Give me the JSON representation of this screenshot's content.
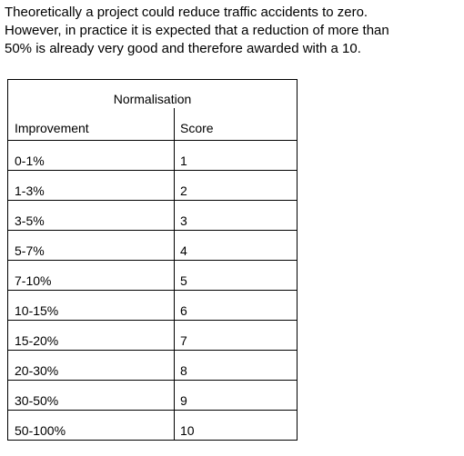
{
  "intro": {
    "lines": [
      "Theoretically a project could reduce traffic accidents to zero.",
      "However, in practice it is expected that a reduction of more than",
      "50% is already very good and therefore awarded with a 10."
    ]
  },
  "table": {
    "caption": "Normalisation",
    "headers": {
      "improvement": "Improvement",
      "score": "Score"
    },
    "rows": [
      {
        "improvement": "0-1%",
        "score": "1"
      },
      {
        "improvement": "1-3%",
        "score": "2"
      },
      {
        "improvement": "3-5%",
        "score": "3"
      },
      {
        "improvement": "5-7%",
        "score": "4"
      },
      {
        "improvement": "7-10%",
        "score": "5"
      },
      {
        "improvement": "10-15%",
        "score": "6"
      },
      {
        "improvement": "15-20%",
        "score": "7"
      },
      {
        "improvement": "20-30%",
        "score": "8"
      },
      {
        "improvement": "30-50%",
        "score": "9"
      },
      {
        "improvement": "50-100%",
        "score": "10"
      }
    ]
  }
}
